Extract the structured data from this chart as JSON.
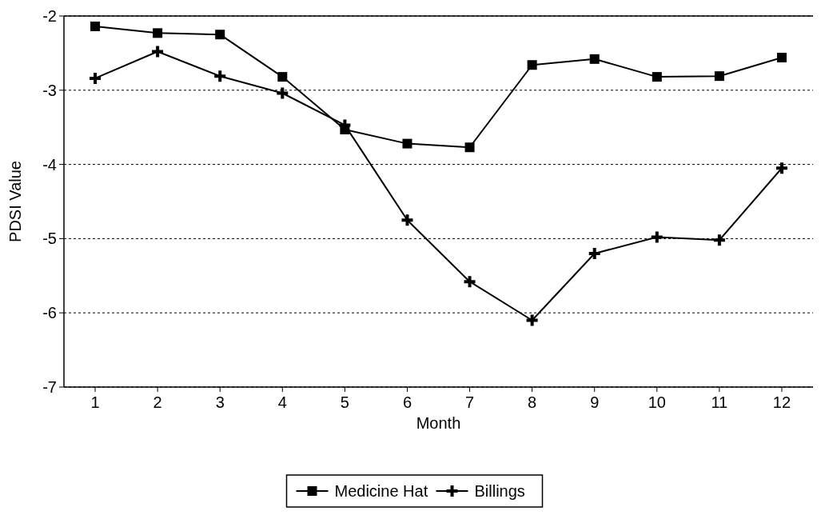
{
  "chart_data": {
    "type": "line",
    "xlabel": "Month",
    "ylabel": "PDSI Value",
    "x": [
      1,
      2,
      3,
      4,
      5,
      6,
      7,
      8,
      9,
      10,
      11,
      12
    ],
    "xlim": [
      0.5,
      12.5
    ],
    "xticks": [
      1,
      2,
      3,
      4,
      5,
      6,
      7,
      8,
      9,
      10,
      11,
      12
    ],
    "ylim": [
      -7,
      -2
    ],
    "yticks": [
      -7,
      -6,
      -5,
      -4,
      -3,
      -2
    ],
    "grid": "y",
    "legend": "bottom",
    "series": [
      {
        "name": "Medicine Hat",
        "color": "#000000",
        "marker": "square",
        "values": [
          -2.14,
          -2.23,
          -2.25,
          -2.82,
          -3.53,
          -3.72,
          -3.77,
          -2.66,
          -2.58,
          -2.82,
          -2.81,
          -2.56
        ]
      },
      {
        "name": "Billings",
        "color": "#000000",
        "marker": "cross",
        "values": [
          -2.84,
          -2.48,
          -2.81,
          -3.04,
          -3.47,
          -4.75,
          -5.58,
          -6.1,
          -5.2,
          -4.98,
          -5.02,
          -4.05
        ]
      }
    ]
  }
}
